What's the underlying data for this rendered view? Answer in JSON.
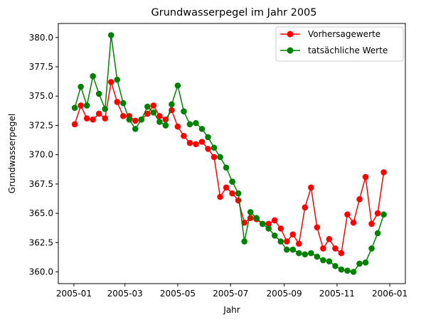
{
  "chart_data": {
    "type": "line",
    "title": "Grundwasserpegel im Jahr 2005",
    "xlabel": "Jahr",
    "ylabel": "Grundwasserpegel",
    "x_tick_labels": [
      "2005-01",
      "2005-03",
      "2005-05",
      "2005-07",
      "2005-09",
      "2005-11",
      "2006-01"
    ],
    "x_tick_dates": [
      "2005-01-01",
      "2005-03-01",
      "2005-05-01",
      "2005-07-01",
      "2005-09-01",
      "2005-11-01",
      "2006-01-01"
    ],
    "xlim": [
      "2004-12-14",
      "2006-01-19"
    ],
    "y_ticks": [
      360.0,
      362.5,
      365.0,
      367.5,
      370.0,
      372.5,
      375.0,
      377.5,
      380.0
    ],
    "y_tick_labels": [
      "360.0",
      "362.5",
      "365.0",
      "367.5",
      "370.0",
      "372.5",
      "375.0",
      "377.5",
      "380.0"
    ],
    "ylim": [
      359.0,
      381.2
    ],
    "grid": false,
    "legend_position": "top-right",
    "x": [
      "2005-01-02",
      "2005-01-09",
      "2005-01-16",
      "2005-01-23",
      "2005-01-30",
      "2005-02-06",
      "2005-02-13",
      "2005-02-20",
      "2005-02-27",
      "2005-03-06",
      "2005-03-13",
      "2005-03-20",
      "2005-03-27",
      "2005-04-03",
      "2005-04-10",
      "2005-04-17",
      "2005-04-24",
      "2005-05-01",
      "2005-05-08",
      "2005-05-15",
      "2005-05-22",
      "2005-05-29",
      "2005-06-05",
      "2005-06-12",
      "2005-06-19",
      "2005-06-26",
      "2005-07-03",
      "2005-07-10",
      "2005-07-17",
      "2005-07-24",
      "2005-07-31",
      "2005-08-07",
      "2005-08-14",
      "2005-08-21",
      "2005-08-28",
      "2005-09-04",
      "2005-09-11",
      "2005-09-18",
      "2005-09-25",
      "2005-10-02",
      "2005-10-09",
      "2005-10-16",
      "2005-10-23",
      "2005-10-30",
      "2005-11-06",
      "2005-11-13",
      "2005-11-20",
      "2005-11-27",
      "2005-12-04",
      "2005-12-11",
      "2005-12-18",
      "2005-12-25"
    ],
    "series": [
      {
        "name": "Vorhersagewerte",
        "color": "#ff0000",
        "values": [
          372.6,
          374.2,
          373.1,
          373.0,
          373.5,
          373.1,
          376.2,
          374.5,
          373.3,
          373.3,
          372.9,
          373.0,
          373.5,
          374.2,
          373.3,
          373.0,
          373.8,
          372.4,
          371.6,
          371.0,
          370.9,
          371.1,
          370.5,
          369.8,
          366.4,
          367.2,
          366.7,
          366.1,
          364.2,
          364.6,
          364.5,
          364.1,
          364.1,
          364.4,
          363.7,
          362.6,
          363.2,
          362.4,
          365.5,
          367.2,
          363.8,
          362.0,
          362.8,
          362.0,
          361.6,
          364.9,
          364.2,
          366.2,
          368.1,
          364.1,
          365.0,
          368.5
        ]
      },
      {
        "name": "tatsächliche Werte",
        "color": "#008000",
        "values": [
          374.0,
          375.8,
          374.2,
          376.7,
          375.2,
          373.9,
          380.2,
          376.4,
          374.4,
          373.0,
          372.2,
          373.0,
          374.1,
          373.6,
          372.8,
          372.5,
          374.3,
          375.9,
          373.7,
          372.6,
          372.7,
          372.2,
          371.5,
          370.6,
          369.8,
          368.9,
          367.7,
          366.7,
          362.6,
          365.1,
          364.6,
          364.1,
          363.7,
          363.1,
          362.6,
          361.9,
          361.9,
          361.6,
          361.5,
          361.6,
          361.3,
          361.0,
          360.9,
          360.5,
          360.2,
          360.1,
          360.0,
          360.7,
          360.8,
          362.0,
          363.3,
          364.9
        ]
      }
    ]
  }
}
